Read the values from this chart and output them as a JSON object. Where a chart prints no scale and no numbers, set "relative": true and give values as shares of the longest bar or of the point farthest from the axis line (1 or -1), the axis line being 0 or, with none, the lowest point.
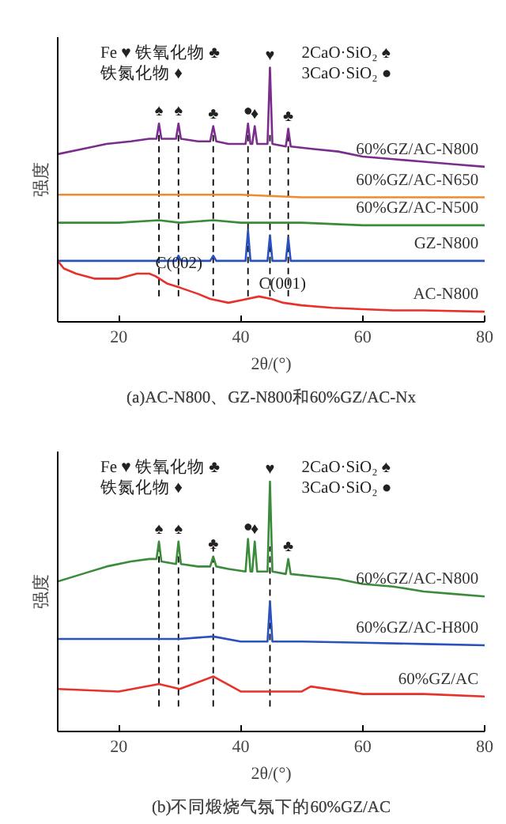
{
  "chart_data": [
    {
      "type": "line",
      "relative": true,
      "xlabel": "2θ/(°)",
      "ylabel": "强度",
      "title": "(a)AC-N800、GZ-N800和60%GZ/AC-Nx",
      "xlim": [
        10,
        80
      ],
      "xticks": [
        20,
        40,
        60,
        80
      ],
      "legend": false,
      "grid": false,
      "tick_labels": "x",
      "series": [
        {
          "name": "60%GZ/AC-N800",
          "color": "#7b2d8e",
          "x": [
            10,
            14,
            18,
            22,
            25,
            26.2,
            26.6,
            27,
            29.4,
            29.8,
            30.2,
            33,
            35,
            35.5,
            36,
            38,
            40.8,
            41.2,
            41.6,
            41.9,
            42.3,
            42.7,
            44.4,
            44.8,
            45.2,
            47.4,
            47.8,
            48.2,
            52,
            56,
            60,
            65,
            70,
            75,
            80
          ],
          "values": [
            0.66,
            0.68,
            0.7,
            0.71,
            0.72,
            0.72,
            0.78,
            0.72,
            0.72,
            0.78,
            0.72,
            0.71,
            0.71,
            0.77,
            0.71,
            0.7,
            0.7,
            0.78,
            0.7,
            0.7,
            0.77,
            0.7,
            0.7,
            1.0,
            0.7,
            0.69,
            0.76,
            0.69,
            0.68,
            0.67,
            0.65,
            0.64,
            0.63,
            0.62,
            0.61
          ]
        },
        {
          "name": "60%GZ/AC-N650",
          "color": "#f08a2c",
          "x": [
            10,
            20,
            30,
            40,
            50,
            60,
            70,
            80
          ],
          "values": [
            0.5,
            0.5,
            0.5,
            0.5,
            0.49,
            0.49,
            0.49,
            0.49
          ]
        },
        {
          "name": "60%GZ/AC-N500",
          "color": "#3a8c3a",
          "x": [
            10,
            20,
            26.6,
            30,
            35.5,
            40,
            50,
            60,
            70,
            80
          ],
          "values": [
            0.39,
            0.39,
            0.4,
            0.39,
            0.4,
            0.39,
            0.39,
            0.38,
            0.38,
            0.38
          ]
        },
        {
          "name": "GZ-N800",
          "color": "#2a52be",
          "x": [
            10,
            20,
            29.4,
            29.8,
            30.2,
            35,
            35.5,
            36,
            40.8,
            41.2,
            41.6,
            44.4,
            44.8,
            45.2,
            47.4,
            47.8,
            48.2,
            55,
            65,
            80
          ],
          "values": [
            0.24,
            0.24,
            0.24,
            0.26,
            0.24,
            0.24,
            0.26,
            0.24,
            0.24,
            0.36,
            0.24,
            0.24,
            0.34,
            0.24,
            0.24,
            0.33,
            0.24,
            0.24,
            0.24,
            0.24
          ]
        },
        {
          "name": "AC-N800",
          "color": "#e8312a",
          "x": [
            10,
            11,
            13,
            16,
            20,
            23,
            25,
            26,
            28,
            30,
            33,
            35,
            38,
            40,
            43,
            45,
            47,
            50,
            55,
            60,
            65,
            70,
            80
          ],
          "values": [
            0.24,
            0.21,
            0.19,
            0.17,
            0.17,
            0.19,
            0.19,
            0.18,
            0.15,
            0.135,
            0.11,
            0.09,
            0.075,
            0.085,
            0.1,
            0.09,
            0.075,
            0.065,
            0.055,
            0.05,
            0.045,
            0.045,
            0.04
          ]
        }
      ],
      "ref_lines": [
        {
          "axis": "x",
          "value": 26.6,
          "line_style": "dashed"
        },
        {
          "axis": "x",
          "value": 29.8,
          "line_style": "dashed"
        },
        {
          "axis": "x",
          "value": 35.5,
          "line_style": "dashed"
        },
        {
          "axis": "x",
          "value": 41.2,
          "line_style": "dashed"
        },
        {
          "axis": "x",
          "value": 44.8,
          "line_style": "dashed"
        },
        {
          "axis": "x",
          "value": 47.8,
          "line_style": "dashed"
        }
      ],
      "annotations": [
        "Fe ♥ 铁氧化物 ♣",
        "铁氮化物 ♦",
        "2CaO·SiO₂ ♠",
        "3CaO·SiO₂ ●",
        {
          "text": "♠",
          "x": 26.6,
          "y": 0.78
        },
        {
          "text": "♠",
          "x": 29.8,
          "y": 0.78
        },
        {
          "text": "♣",
          "x": 35.5,
          "y": 0.77
        },
        {
          "text": "●",
          "x": 41.2,
          "y": 0.78
        },
        {
          "text": "♦",
          "x": 42.3,
          "y": 0.77
        },
        {
          "text": "♥",
          "x": 44.8,
          "y": 1.0
        },
        {
          "text": "♣",
          "x": 47.8,
          "y": 0.76
        },
        {
          "text": "C(002)",
          "x": 26,
          "y": 0.18
        },
        {
          "text": "C(001)",
          "x": 43,
          "y": 0.1
        }
      ]
    },
    {
      "type": "line",
      "relative": true,
      "xlabel": "2θ/(°)",
      "ylabel": "强度",
      "title": "(b)不同煅烧气氛下的60%GZ/AC",
      "xlim": [
        10,
        80
      ],
      "xticks": [
        20,
        40,
        60,
        80
      ],
      "legend": false,
      "grid": false,
      "tick_labels": "x",
      "series": [
        {
          "name": "60%GZ/AC-N800",
          "color": "#3a8c3a",
          "x": [
            10,
            14,
            18,
            22,
            25,
            26.2,
            26.6,
            27,
            29.4,
            29.8,
            30.2,
            33,
            35,
            35.5,
            36,
            38,
            40.8,
            41.2,
            41.6,
            41.9,
            42.3,
            42.7,
            44.4,
            44.8,
            45.2,
            47.4,
            47.8,
            48.2,
            52,
            56,
            60,
            65,
            70,
            75,
            80
          ],
          "values": [
            0.6,
            0.63,
            0.66,
            0.68,
            0.69,
            0.69,
            0.76,
            0.68,
            0.67,
            0.76,
            0.67,
            0.66,
            0.66,
            0.7,
            0.66,
            0.65,
            0.64,
            0.77,
            0.64,
            0.64,
            0.76,
            0.64,
            0.64,
            1.0,
            0.64,
            0.63,
            0.69,
            0.63,
            0.62,
            0.61,
            0.59,
            0.58,
            0.56,
            0.55,
            0.54
          ]
        },
        {
          "name": "60%GZ/AC-H800",
          "color": "#2a52be",
          "x": [
            10,
            20,
            30,
            35.5,
            40,
            44.4,
            44.8,
            45.2,
            50,
            60,
            70,
            80
          ],
          "values": [
            0.37,
            0.37,
            0.37,
            0.38,
            0.36,
            0.36,
            0.52,
            0.36,
            0.36,
            0.355,
            0.35,
            0.345
          ]
        },
        {
          "name": "60%GZ/AC",
          "color": "#e8312a",
          "x": [
            10,
            20,
            26.6,
            30,
            35.5,
            40,
            50,
            51.5,
            60,
            70,
            80
          ],
          "values": [
            0.17,
            0.16,
            0.19,
            0.17,
            0.22,
            0.16,
            0.16,
            0.18,
            0.15,
            0.15,
            0.14
          ]
        }
      ],
      "ref_lines": [
        {
          "axis": "x",
          "value": 26.6,
          "line_style": "dashed"
        },
        {
          "axis": "x",
          "value": 29.8,
          "line_style": "dashed"
        },
        {
          "axis": "x",
          "value": 35.5,
          "line_style": "dashed"
        },
        {
          "axis": "x",
          "value": 44.8,
          "line_style": "dashed"
        }
      ],
      "annotations": [
        "Fe ♥ 铁氧化物 ♣",
        "铁氮化物 ♦",
        "2CaO·SiO₂ ♠",
        "3CaO·SiO₂ ●",
        {
          "text": "♠",
          "x": 26.6,
          "y": 0.76
        },
        {
          "text": "♠",
          "x": 29.8,
          "y": 0.76
        },
        {
          "text": "♣",
          "x": 35.5,
          "y": 0.7
        },
        {
          "text": "●",
          "x": 41.2,
          "y": 0.77
        },
        {
          "text": "♦",
          "x": 42.3,
          "y": 0.76
        },
        {
          "text": "♥",
          "x": 44.8,
          "y": 1.0
        },
        {
          "text": "♣",
          "x": 47.8,
          "y": 0.69
        }
      ]
    }
  ]
}
